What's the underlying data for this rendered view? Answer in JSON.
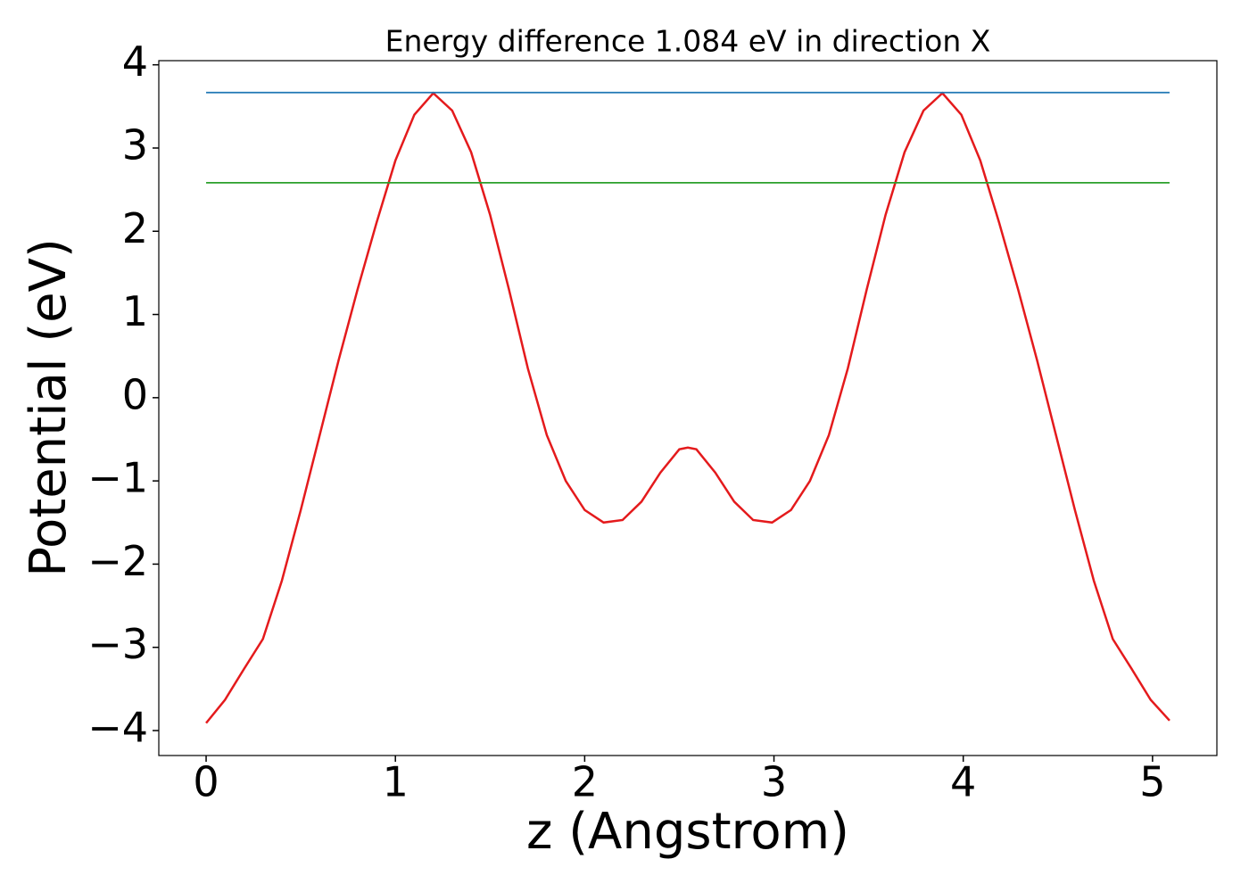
{
  "chart_data": {
    "type": "line",
    "title": "Energy difference 1.084 eV in direction X",
    "xlabel": "z (Angstrom)",
    "ylabel": "Potential (eV)",
    "xlim": [
      -0.25,
      5.34
    ],
    "ylim": [
      -4.3,
      4.05
    ],
    "xticks": [
      0,
      1,
      2,
      3,
      4,
      5
    ],
    "yticks": [
      {
        "value": -4,
        "label": "−4"
      },
      {
        "value": -3,
        "label": "−3"
      },
      {
        "value": -2,
        "label": "−2"
      },
      {
        "value": -1,
        "label": "−1"
      },
      0,
      1,
      2,
      3,
      4
    ],
    "series": [
      {
        "color": "#e41a1c",
        "x": [
          0,
          0.1,
          0.2,
          0.3,
          0.4,
          0.5,
          0.6,
          0.7,
          0.8,
          0.9,
          1.0,
          1.1,
          1.2,
          1.3,
          1.4,
          1.5,
          1.6,
          1.7,
          1.8,
          1.9,
          2.0,
          2.1,
          2.2,
          2.3,
          2.4,
          2.5,
          2.545,
          2.59,
          2.69,
          2.79,
          2.89,
          2.99,
          3.09,
          3.19,
          3.29,
          3.39,
          3.49,
          3.59,
          3.69,
          3.79,
          3.89,
          3.99,
          4.09,
          4.19,
          4.29,
          4.39,
          4.49,
          4.59,
          4.69,
          4.79,
          4.89,
          4.99,
          5.09
        ],
        "values": [
          -3.91,
          -3.63,
          -3.26,
          -2.9,
          -2.2,
          -1.35,
          -0.45,
          0.45,
          1.3,
          2.1,
          2.85,
          3.4,
          3.66,
          3.45,
          2.95,
          2.2,
          1.3,
          0.35,
          -0.45,
          -1.0,
          -1.35,
          -1.5,
          -1.47,
          -1.25,
          -0.9,
          -0.62,
          -0.6,
          -0.62,
          -0.9,
          -1.25,
          -1.47,
          -1.5,
          -1.35,
          -1.0,
          -0.45,
          0.35,
          1.3,
          2.2,
          2.95,
          3.45,
          3.66,
          3.4,
          2.85,
          2.1,
          1.3,
          0.45,
          -0.45,
          -1.35,
          -2.2,
          -2.9,
          -3.26,
          -3.63,
          -3.88
        ]
      },
      {
        "color": "#1f77b4",
        "x": [
          0,
          5.09
        ],
        "values": [
          3.667,
          3.667
        ]
      },
      {
        "color": "#2ca02c",
        "x": [
          0,
          5.09
        ],
        "values": [
          2.583,
          2.583
        ]
      }
    ]
  }
}
